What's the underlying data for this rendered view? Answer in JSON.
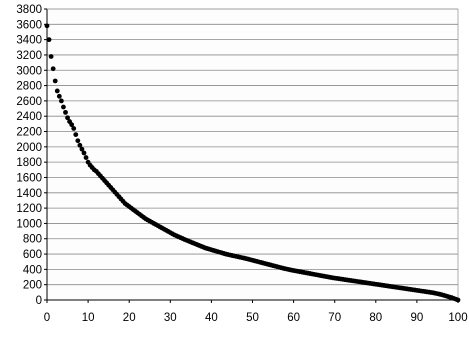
{
  "chart_data": {
    "type": "scatter",
    "title": "",
    "xlabel": "",
    "ylabel": "",
    "xlim": [
      0,
      100
    ],
    "ylim": [
      0,
      3800
    ],
    "x_ticks": [
      "0",
      "10",
      "20",
      "30",
      "40",
      "50",
      "60",
      "70",
      "80",
      "90",
      "100"
    ],
    "y_ticks": [
      "0",
      "200",
      "400",
      "600",
      "800",
      "1000",
      "1200",
      "1400",
      "1600",
      "1800",
      "2000",
      "2200",
      "2400",
      "2600",
      "2800",
      "3000",
      "3200",
      "3400",
      "3600",
      "3800"
    ],
    "grid": true,
    "legend": "none",
    "marker_color": "#000000",
    "series": [
      {
        "x": [
          0.0,
          0.5,
          1.0,
          1.5,
          2.0,
          2.5,
          3.0,
          3.5,
          4.0,
          4.5,
          5.0,
          5.5,
          6.0,
          6.5,
          7.0,
          7.5,
          8.0,
          8.5,
          9.0,
          9.5,
          10.0,
          10.5,
          11.0,
          11.5,
          12.0,
          12.5,
          13.0,
          13.5,
          14.0,
          14.5,
          15.0,
          15.5,
          16.0,
          16.5,
          17.0,
          17.5,
          18.0,
          18.5,
          19.0,
          19.5,
          20.0,
          20.5,
          21.0,
          21.5,
          22.0,
          22.5,
          23.0,
          23.5,
          24.0,
          24.5,
          25.0,
          25.5,
          26.0,
          26.5,
          27.0,
          27.5,
          28.0,
          28.5,
          29.0,
          29.5,
          30.0,
          30.5,
          31.0,
          31.5,
          32.0,
          32.5,
          33.0,
          33.5,
          34.0,
          34.5,
          35.0,
          35.5,
          36.0,
          36.5,
          37.0,
          37.5,
          38.0,
          38.5,
          39.0,
          39.5,
          40.0,
          40.5,
          41.0,
          41.5,
          42.0,
          42.5,
          43.0,
          43.5,
          44.0,
          44.5,
          45.0,
          45.5,
          46.0,
          46.5,
          47.0,
          47.5,
          48.0,
          48.5,
          49.0,
          49.5,
          50.0,
          50.5,
          51.0,
          51.5,
          52.0,
          52.5,
          53.0,
          53.5,
          54.0,
          54.5,
          55.0,
          55.5,
          56.0,
          56.5,
          57.0,
          57.5,
          58.0,
          58.5,
          59.0,
          59.5,
          60.0,
          60.5,
          61.0,
          61.5,
          62.0,
          62.5,
          63.0,
          63.5,
          64.0,
          64.5,
          65.0,
          65.5,
          66.0,
          66.5,
          67.0,
          67.5,
          68.0,
          68.5,
          69.0,
          69.5,
          70.0,
          70.5,
          71.0,
          71.5,
          72.0,
          72.5,
          73.0,
          73.5,
          74.0,
          74.5,
          75.0,
          75.5,
          76.0,
          76.5,
          77.0,
          77.5,
          78.0,
          78.5,
          79.0,
          79.5,
          80.0,
          80.5,
          81.0,
          81.5,
          82.0,
          82.5,
          83.0,
          83.5,
          84.0,
          84.5,
          85.0,
          85.5,
          86.0,
          86.5,
          87.0,
          87.5,
          88.0,
          88.5,
          89.0,
          89.5,
          90.0,
          90.5,
          91.0,
          91.5,
          92.0,
          92.5,
          93.0,
          93.5,
          94.0,
          94.5,
          95.0,
          95.5,
          96.0,
          96.5,
          97.0,
          97.5,
          98.0,
          98.5,
          99.0,
          99.5,
          100.0
        ],
        "y": [
          3580,
          3400,
          3180,
          3020,
          2860,
          2730,
          2660,
          2600,
          2520,
          2450,
          2380,
          2330,
          2290,
          2240,
          2160,
          2080,
          2020,
          1970,
          1920,
          1860,
          1800,
          1760,
          1730,
          1700,
          1680,
          1650,
          1620,
          1590,
          1560,
          1530,
          1500,
          1470,
          1440,
          1410,
          1380,
          1350,
          1320,
          1290,
          1260,
          1240,
          1220,
          1200,
          1180,
          1160,
          1140,
          1120,
          1100,
          1080,
          1060,
          1045,
          1030,
          1015,
          1000,
          985,
          970,
          955,
          940,
          925,
          910,
          895,
          880,
          865,
          850,
          838,
          826,
          814,
          802,
          790,
          779,
          768,
          757,
          746,
          735,
          724,
          713,
          702,
          691,
          680,
          672,
          664,
          656,
          648,
          640,
          632,
          624,
          616,
          608,
          600,
          594,
          588,
          582,
          576,
          570,
          564,
          558,
          552,
          546,
          540,
          533,
          526,
          519,
          512,
          505,
          498,
          491,
          484,
          477,
          470,
          463,
          456,
          449,
          442,
          435,
          428,
          421,
          414,
          408,
          402,
          396,
          390,
          385,
          380,
          375,
          370,
          365,
          360,
          355,
          350,
          345,
          340,
          335,
          330,
          325,
          320,
          315,
          310,
          305,
          300,
          295,
          290,
          286,
          282,
          278,
          274,
          270,
          266,
          262,
          258,
          254,
          250,
          246,
          242,
          238,
          234,
          230,
          226,
          222,
          218,
          214,
          210,
          206,
          202,
          198,
          194,
          190,
          186,
          182,
          178,
          174,
          170,
          166,
          162,
          158,
          154,
          150,
          146,
          142,
          138,
          134,
          130,
          126,
          122,
          118,
          114,
          110,
          106,
          102,
          98,
          94,
          88,
          82,
          76,
          70,
          62,
          54,
          46,
          38,
          30,
          20,
          10,
          0
        ]
      }
    ]
  }
}
